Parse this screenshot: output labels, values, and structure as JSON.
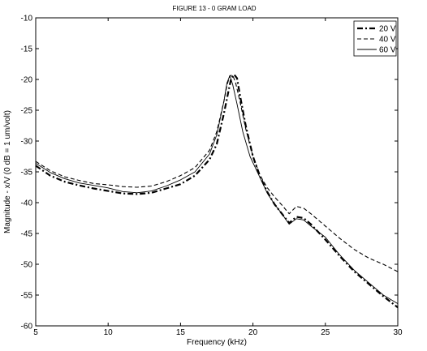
{
  "chart_data": {
    "type": "line",
    "title": "FIGURE 13 - 0 GRAM LOAD",
    "xlabel": "Frequency (kHz)",
    "ylabel": "Magnitude - x/V (0 dB = 1 um/volt)",
    "xlim": [
      5,
      30
    ],
    "ylim": [
      -60,
      -10
    ],
    "xticks": [
      5,
      10,
      15,
      20,
      25,
      30
    ],
    "yticks": [
      -60,
      -55,
      -50,
      -45,
      -40,
      -35,
      -30,
      -25,
      -20,
      -15,
      -10
    ],
    "grid": false,
    "legend_position": "top-right",
    "series": [
      {
        "name": "20 V",
        "style": "dash-dot-thick",
        "points": [
          [
            5,
            -34
          ],
          [
            6,
            -35.6
          ],
          [
            7,
            -36.6
          ],
          [
            8,
            -37.2
          ],
          [
            9,
            -37.7
          ],
          [
            10,
            -38.1
          ],
          [
            11,
            -38.5
          ],
          [
            12,
            -38.6
          ],
          [
            13,
            -38.4
          ],
          [
            14,
            -37.7
          ],
          [
            15,
            -37
          ],
          [
            16,
            -35.6
          ],
          [
            17,
            -33
          ],
          [
            17.5,
            -30.5
          ],
          [
            18,
            -25.5
          ],
          [
            18.3,
            -22
          ],
          [
            18.5,
            -19.8
          ],
          [
            18.7,
            -19.2
          ],
          [
            18.9,
            -19.8
          ],
          [
            19.1,
            -22.5
          ],
          [
            19.5,
            -27.5
          ],
          [
            20,
            -32.5
          ],
          [
            20.5,
            -35.8
          ],
          [
            21,
            -38.3
          ],
          [
            21.5,
            -40.3
          ],
          [
            22,
            -41.8
          ],
          [
            22.5,
            -43.3
          ],
          [
            23,
            -42.3
          ],
          [
            23.5,
            -42.5
          ],
          [
            24,
            -43.5
          ],
          [
            25,
            -46
          ],
          [
            26,
            -48.7
          ],
          [
            27,
            -51.2
          ],
          [
            28,
            -53.2
          ],
          [
            29,
            -55.2
          ],
          [
            30,
            -57
          ]
        ]
      },
      {
        "name": "40 V",
        "style": "dashed",
        "points": [
          [
            5,
            -33.3
          ],
          [
            6,
            -34.8
          ],
          [
            7,
            -35.8
          ],
          [
            8,
            -36.4
          ],
          [
            9,
            -36.9
          ],
          [
            10,
            -37.1
          ],
          [
            11,
            -37.4
          ],
          [
            12,
            -37.5
          ],
          [
            13,
            -37.3
          ],
          [
            14,
            -36.6
          ],
          [
            15,
            -35.6
          ],
          [
            16,
            -34.3
          ],
          [
            17,
            -31.5
          ],
          [
            17.5,
            -28.5
          ],
          [
            18,
            -23.5
          ],
          [
            18.2,
            -21
          ],
          [
            18.4,
            -19.4
          ],
          [
            18.6,
            -19.3
          ],
          [
            18.8,
            -20.5
          ],
          [
            19.1,
            -23.5
          ],
          [
            19.5,
            -28
          ],
          [
            20,
            -32.5
          ],
          [
            20.5,
            -35.6
          ],
          [
            21,
            -37.6
          ],
          [
            21.5,
            -39.1
          ],
          [
            22,
            -40.4
          ],
          [
            22.5,
            -41.8
          ],
          [
            23,
            -40.6
          ],
          [
            23.5,
            -40.9
          ],
          [
            24,
            -41.8
          ],
          [
            25,
            -43.8
          ],
          [
            26,
            -45.8
          ],
          [
            27,
            -47.6
          ],
          [
            28,
            -49
          ],
          [
            29,
            -50
          ],
          [
            30,
            -51.2
          ]
        ]
      },
      {
        "name": "60 V",
        "style": "solid",
        "points": [
          [
            5,
            -33.6
          ],
          [
            6,
            -35.1
          ],
          [
            7,
            -36.1
          ],
          [
            8,
            -36.8
          ],
          [
            9,
            -37.2
          ],
          [
            10,
            -37.6
          ],
          [
            11,
            -38.2
          ],
          [
            12,
            -38.4
          ],
          [
            13,
            -38.1
          ],
          [
            14,
            -37.3
          ],
          [
            15,
            -36.3
          ],
          [
            16,
            -35
          ],
          [
            17,
            -32.1
          ],
          [
            17.5,
            -29
          ],
          [
            18,
            -23.5
          ],
          [
            18.2,
            -20.6
          ],
          [
            18.4,
            -19.4
          ],
          [
            18.6,
            -20.8
          ],
          [
            18.9,
            -24
          ],
          [
            19.3,
            -28.5
          ],
          [
            19.8,
            -32.5
          ],
          [
            20.5,
            -36
          ],
          [
            21,
            -38.5
          ],
          [
            21.5,
            -40.3
          ],
          [
            22,
            -41.8
          ],
          [
            22.5,
            -43.5
          ],
          [
            23,
            -42.6
          ],
          [
            23.5,
            -42.8
          ],
          [
            24,
            -43.8
          ],
          [
            25,
            -45.6
          ],
          [
            26,
            -48.5
          ],
          [
            27,
            -51
          ],
          [
            28,
            -53
          ],
          [
            29,
            -55
          ],
          [
            30,
            -56.4
          ]
        ]
      }
    ]
  }
}
